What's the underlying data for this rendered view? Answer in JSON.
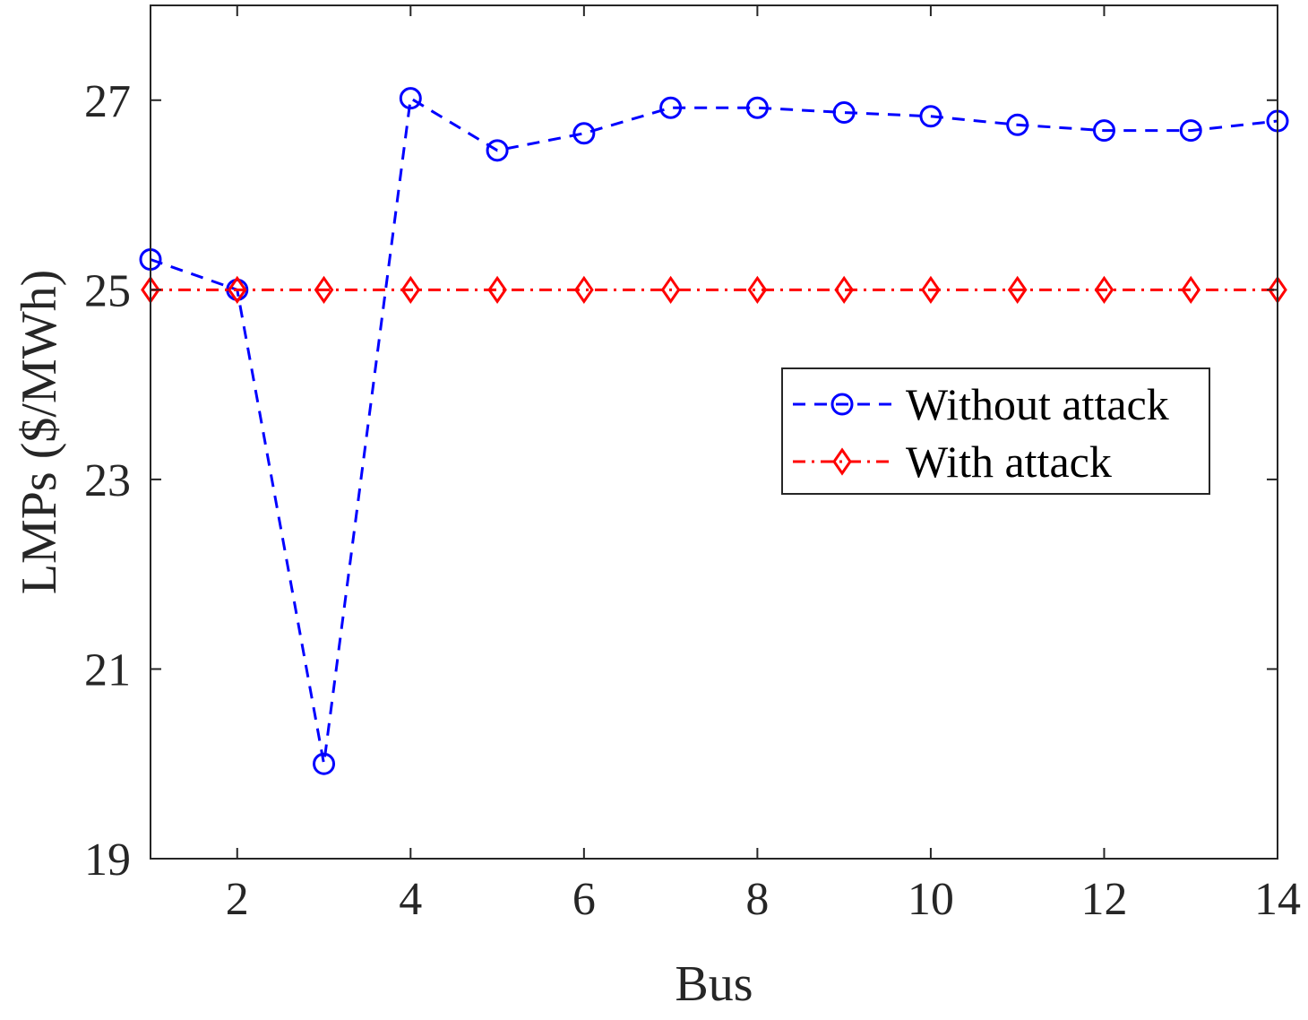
{
  "chart_data": {
    "type": "line",
    "xlabel": "Bus",
    "ylabel": "LMPs ($/MWh)",
    "xlim": [
      1,
      14
    ],
    "ylim": [
      19,
      28
    ],
    "xticks": [
      2,
      4,
      6,
      8,
      10,
      12,
      14
    ],
    "yticks": [
      19,
      21,
      23,
      25,
      27
    ],
    "grid": false,
    "legend_position": "right",
    "x": [
      1,
      2,
      3,
      4,
      5,
      6,
      7,
      8,
      9,
      10,
      11,
      12,
      13,
      14
    ],
    "series": [
      {
        "name": "Without attack",
        "color": "#0000ff",
        "line_style": "dashed",
        "marker": "circle",
        "values": [
          25.32,
          25.0,
          20.0,
          27.02,
          26.47,
          26.65,
          26.92,
          26.92,
          26.87,
          26.83,
          26.74,
          26.68,
          26.68,
          26.78
        ]
      },
      {
        "name": "With attack",
        "color": "#ff0000",
        "line_style": "dashdot",
        "marker": "diamond",
        "values": [
          25,
          25,
          25,
          25,
          25,
          25,
          25,
          25,
          25,
          25,
          25,
          25,
          25,
          25
        ]
      }
    ]
  }
}
